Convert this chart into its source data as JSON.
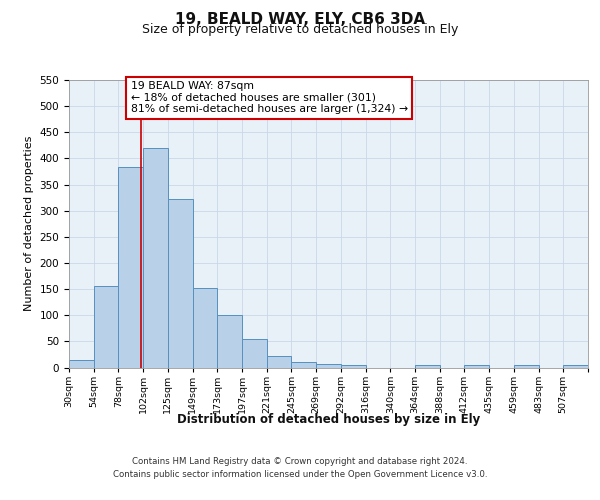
{
  "title": "19, BEALD WAY, ELY, CB6 3DA",
  "subtitle": "Size of property relative to detached houses in Ely",
  "xlabel": "Distribution of detached houses by size in Ely",
  "ylabel": "Number of detached properties",
  "bar_labels": [
    "30sqm",
    "54sqm",
    "78sqm",
    "102sqm",
    "125sqm",
    "149sqm",
    "173sqm",
    "197sqm",
    "221sqm",
    "245sqm",
    "269sqm",
    "292sqm",
    "316sqm",
    "340sqm",
    "364sqm",
    "388sqm",
    "412sqm",
    "435sqm",
    "459sqm",
    "483sqm",
    "507sqm"
  ],
  "bar_heights": [
    15,
    155,
    383,
    420,
    323,
    153,
    100,
    55,
    22,
    10,
    7,
    5,
    0,
    0,
    5,
    0,
    5,
    0,
    5,
    0,
    5
  ],
  "bar_color": "#b8d0e8",
  "bar_edge_color": "#5590c0",
  "grid_color": "#c8d8ea",
  "background_color": "#e8f0f8",
  "vline_x": 2.9,
  "vline_color": "#cc0000",
  "annotation_title": "19 BEALD WAY: 87sqm",
  "annotation_line1": "← 18% of detached houses are smaller (301)",
  "annotation_line2": "81% of semi-detached houses are larger (1,324) →",
  "annotation_box_facecolor": "#ffffff",
  "annotation_box_edgecolor": "#cc0000",
  "ylim": [
    0,
    550
  ],
  "yticks": [
    0,
    50,
    100,
    150,
    200,
    250,
    300,
    350,
    400,
    450,
    500,
    550
  ],
  "footer_line1": "Contains HM Land Registry data © Crown copyright and database right 2024.",
  "footer_line2": "Contains public sector information licensed under the Open Government Licence v3.0."
}
